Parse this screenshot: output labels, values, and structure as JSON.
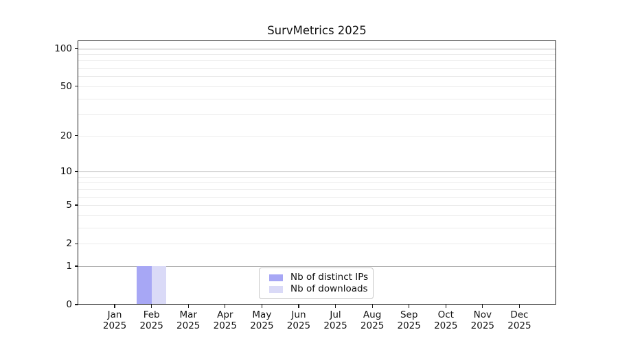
{
  "chart_data": {
    "type": "bar",
    "title": "SurvMetrics 2025",
    "xlabel": "",
    "ylabel": "",
    "categories": [
      "Jan 2025",
      "Feb 2025",
      "Mar 2025",
      "Apr 2025",
      "May 2025",
      "Jun 2025",
      "Jul 2025",
      "Aug 2025",
      "Sep 2025",
      "Oct 2025",
      "Nov 2025",
      "Dec 2025"
    ],
    "series": [
      {
        "name": "Nb of distinct IPs",
        "color": "#a7a7f5",
        "values": [
          0,
          1,
          0,
          0,
          0,
          0,
          0,
          0,
          0,
          0,
          0,
          0
        ]
      },
      {
        "name": "Nb of downloads",
        "color": "#dadaf7",
        "values": [
          0,
          1,
          0,
          0,
          0,
          0,
          0,
          0,
          0,
          0,
          0,
          0
        ]
      }
    ],
    "y_scale": "log1p",
    "ylim": [
      0,
      115
    ],
    "y_ticks": [
      0,
      1,
      2,
      5,
      10,
      20,
      50,
      100
    ],
    "y_grid_major": [
      1,
      10,
      100
    ],
    "y_grid_minor": [
      2,
      3,
      4,
      5,
      6,
      7,
      8,
      9,
      20,
      30,
      40,
      50,
      60,
      70,
      80,
      90
    ],
    "grid": "horizontal",
    "legend_position": "lower center",
    "legend_labels": [
      "Nb of distinct IPs",
      "Nb of downloads"
    ]
  }
}
